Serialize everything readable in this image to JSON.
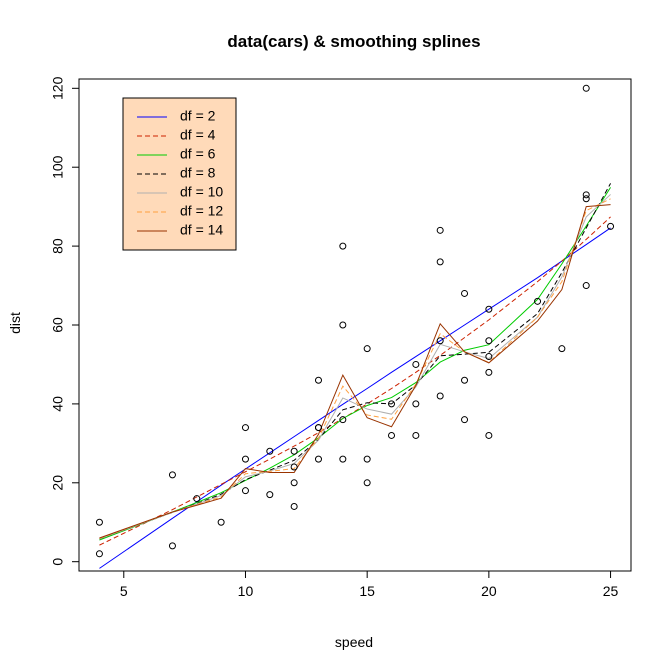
{
  "chart_data": {
    "type": "scatter",
    "title": "data(cars)  &  smoothing splines",
    "xlabel": "speed",
    "ylabel": "dist",
    "xlim": [
      3.16,
      25.84
    ],
    "ylim": [
      -2.36,
      122.36
    ],
    "xticks": [
      5,
      10,
      15,
      20,
      25
    ],
    "yticks": [
      0,
      20,
      40,
      60,
      80,
      100,
      120
    ],
    "grid": false,
    "legend_position": "top-left",
    "points": {
      "x": [
        4,
        4,
        7,
        7,
        8,
        9,
        10,
        10,
        10,
        11,
        11,
        12,
        12,
        12,
        12,
        13,
        13,
        13,
        13,
        14,
        14,
        14,
        14,
        15,
        15,
        15,
        16,
        16,
        17,
        17,
        17,
        18,
        18,
        18,
        18,
        19,
        19,
        19,
        20,
        20,
        20,
        20,
        20,
        22,
        23,
        24,
        24,
        24,
        24,
        25
      ],
      "y": [
        2,
        10,
        4,
        22,
        16,
        10,
        18,
        26,
        34,
        17,
        28,
        14,
        20,
        24,
        28,
        26,
        34,
        34,
        46,
        26,
        36,
        60,
        80,
        20,
        26,
        54,
        32,
        40,
        32,
        40,
        50,
        42,
        56,
        76,
        84,
        36,
        46,
        68,
        32,
        48,
        52,
        56,
        64,
        66,
        54,
        70,
        92,
        93,
        120,
        85
      ]
    },
    "x_grid": [
      4,
      7,
      8,
      9,
      10,
      11,
      12,
      13,
      14,
      15,
      16,
      17,
      18,
      19,
      20,
      22,
      23,
      24,
      25
    ],
    "series": [
      {
        "name": "df = 2",
        "color": "#0000ff",
        "dash": "solid",
        "values": [
          -1.7,
          11.0,
          15.2,
          19.4,
          23.5,
          27.6,
          31.7,
          35.8,
          39.9,
          43.9,
          48.0,
          52.0,
          56.0,
          60.0,
          64.0,
          72.0,
          76.2,
          80.4,
          84.6
        ]
      },
      {
        "name": "df = 4",
        "color": "#cc2200",
        "dash": "dashed",
        "values": [
          4.2,
          13.2,
          16.4,
          19.6,
          22.8,
          26.0,
          29.3,
          32.7,
          36.3,
          40.0,
          43.9,
          48.0,
          52.3,
          56.8,
          61.3,
          71.0,
          76.2,
          81.7,
          87.4
        ]
      },
      {
        "name": "df = 6",
        "color": "#00cc00",
        "dash": "solid",
        "values": [
          5.5,
          12.6,
          15.0,
          17.5,
          20.6,
          23.7,
          27.1,
          31.4,
          36.3,
          39.6,
          41.6,
          45.4,
          50.6,
          53.6,
          55.0,
          66.5,
          75.5,
          85.1,
          94.9
        ]
      },
      {
        "name": "df = 8",
        "color": "#000000",
        "dash": "dashed",
        "values": [
          5.8,
          12.5,
          14.7,
          17.1,
          20.8,
          23.2,
          25.7,
          31.0,
          38.5,
          40.3,
          40.0,
          44.8,
          52.2,
          52.6,
          53.1,
          62.9,
          73.3,
          84.6,
          95.9
        ]
      },
      {
        "name": "df = 10",
        "color": "#b0b0b0",
        "dash": "solid",
        "values": [
          5.8,
          12.5,
          14.6,
          16.8,
          21.5,
          23.0,
          24.9,
          30.8,
          41.5,
          38.7,
          37.4,
          44.3,
          55.1,
          53.2,
          51.5,
          62.0,
          72.2,
          87.4,
          93.1
        ]
      },
      {
        "name": "df = 12",
        "color": "#ffa040",
        "dash": "dashed",
        "values": [
          5.9,
          12.6,
          14.5,
          16.4,
          22.3,
          22.9,
          23.6,
          31.3,
          44.5,
          37.2,
          36.1,
          45.0,
          57.8,
          53.2,
          50.5,
          62.0,
          71.0,
          89.0,
          92.0
        ]
      },
      {
        "name": "df = 14",
        "color": "#993300",
        "dash": "solid",
        "values": [
          6.0,
          12.6,
          14.3,
          16.1,
          23.6,
          22.6,
          22.6,
          32.3,
          47.3,
          36.5,
          34.2,
          44.7,
          60.3,
          53.2,
          50.4,
          61.0,
          69.0,
          90.0,
          90.5
        ]
      }
    ]
  }
}
